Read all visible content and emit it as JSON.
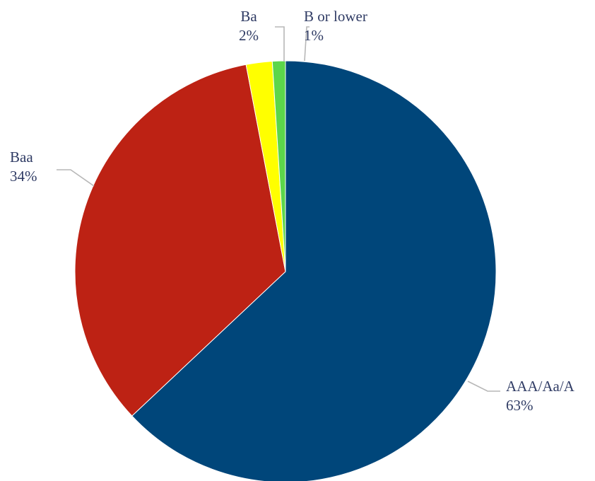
{
  "chart_data": {
    "type": "pie",
    "categories": [
      "AAA/Aa/A",
      "Baa",
      "Ba",
      "B or lower"
    ],
    "values": [
      63,
      34,
      2,
      1
    ],
    "labels": [
      "63%",
      "34%",
      "2%",
      "1%"
    ],
    "colors": [
      "#00467a",
      "#bd2214",
      "#ffff00",
      "#5cd64a"
    ],
    "start_at": "12 o'clock",
    "direction": "clockwise",
    "title": "",
    "legend": "none (data labels beside slices)"
  }
}
